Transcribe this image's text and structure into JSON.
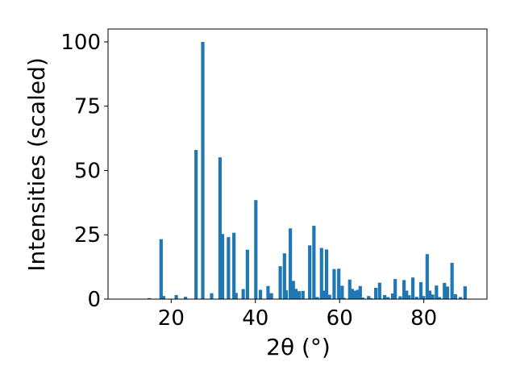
{
  "chart_data": {
    "type": "bar",
    "title": "",
    "xlabel": "2θ (°)",
    "ylabel": "Intensities (scaled)",
    "xlim": [
      5,
      95
    ],
    "ylim": [
      0,
      105
    ],
    "x_ticks": [
      20,
      40,
      60,
      80
    ],
    "y_ticks": [
      0,
      25,
      50,
      75,
      100
    ],
    "grid": false,
    "legend": "none",
    "bar_color": "#1f77b4",
    "bar_width": 0.8,
    "x": [
      14.8,
      17.6,
      18.2,
      21.2,
      23.4,
      25.9,
      27.5,
      29.6,
      31.6,
      32.2,
      33.6,
      34.9,
      35.4,
      37.1,
      38.1,
      40.1,
      41.2,
      43.0,
      43.8,
      45.9,
      46.9,
      47.3,
      48.3,
      49.0,
      49.6,
      50.4,
      51.3,
      52.9,
      53.9,
      54.7,
      55.7,
      56.3,
      56.9,
      57.6,
      58.7,
      59.8,
      60.6,
      61.0,
      62.4,
      63.0,
      63.6,
      64.3,
      64.9,
      65.5,
      66.9,
      67.5,
      68.6,
      69.5,
      70.7,
      71.5,
      72.6,
      73.2,
      74.4,
      75.3,
      75.9,
      76.5,
      77.4,
      78.3,
      79.3,
      79.9,
      80.8,
      81.4,
      82.1,
      83.0,
      83.7,
      84.9,
      85.6,
      86.7,
      87.5,
      88.7,
      89.8
    ],
    "values": [
      0.4,
      23.3,
      1.2,
      1.6,
      0.9,
      58.0,
      100.0,
      2.3,
      55.1,
      25.3,
      24.1,
      25.8,
      2.4,
      3.9,
      19.2,
      38.5,
      3.6,
      5.1,
      2.3,
      12.8,
      17.8,
      3.4,
      27.5,
      7.1,
      4.0,
      3.1,
      3.2,
      20.9,
      28.5,
      0.8,
      19.9,
      3.3,
      19.3,
      1.7,
      11.7,
      11.8,
      5.2,
      0.5,
      7.6,
      4.0,
      3.3,
      3.6,
      5.1,
      0.6,
      1.2,
      0.4,
      4.4,
      6.4,
      1.6,
      0.8,
      2.2,
      7.8,
      1.1,
      7.4,
      3.3,
      1.5,
      8.4,
      0.9,
      6.6,
      1.2,
      17.5,
      3.3,
      1.8,
      5.3,
      0.8,
      6.3,
      4.9,
      14.1,
      1.9,
      0.8,
      5.0
    ]
  }
}
